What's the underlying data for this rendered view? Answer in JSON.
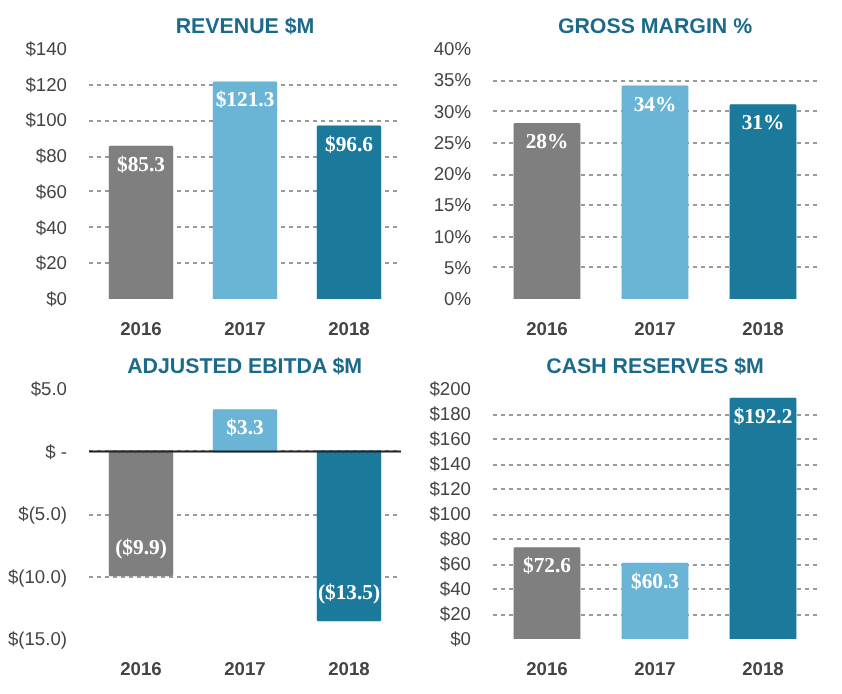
{
  "chart_data": [
    {
      "type": "bar",
      "title": "REVENUE $M",
      "categories": [
        "2016",
        "2017",
        "2018"
      ],
      "values": [
        85.3,
        121.3,
        96.6
      ],
      "colors": [
        "#7f7f7f",
        "#6ab4d6",
        "#1b7a9c"
      ],
      "value_labels": [
        "$85.3",
        "$121.3",
        "$96.6"
      ],
      "ylim": [
        0,
        140
      ],
      "yticks": [
        {
          "value": 0,
          "label": "$0"
        },
        {
          "value": 20,
          "label": "$20"
        },
        {
          "value": 40,
          "label": "$40"
        },
        {
          "value": 60,
          "label": "$60"
        },
        {
          "value": 80,
          "label": "$80"
        },
        {
          "value": 100,
          "label": "$100"
        },
        {
          "value": 120,
          "label": "$120"
        },
        {
          "value": 140,
          "label": "$140"
        }
      ],
      "grid": "y"
    },
    {
      "type": "bar",
      "title": "GROSS MARGIN %",
      "categories": [
        "2016",
        "2017",
        "2018"
      ],
      "values": [
        28,
        34,
        31
      ],
      "colors": [
        "#7f7f7f",
        "#6ab4d6",
        "#1b7a9c"
      ],
      "value_labels": [
        "28%",
        "34%",
        "31%"
      ],
      "ylim": [
        0,
        40
      ],
      "yticks": [
        {
          "value": 0,
          "label": "0%"
        },
        {
          "value": 5,
          "label": "5%"
        },
        {
          "value": 10,
          "label": "10%"
        },
        {
          "value": 15,
          "label": "15%"
        },
        {
          "value": 20,
          "label": "20%"
        },
        {
          "value": 25,
          "label": "25%"
        },
        {
          "value": 30,
          "label": "30%"
        },
        {
          "value": 35,
          "label": "35%"
        },
        {
          "value": 40,
          "label": "40%"
        }
      ],
      "grid": "y"
    },
    {
      "type": "bar",
      "title": "ADJUSTED EBITDA $M",
      "categories": [
        "2016",
        "2017",
        "2018"
      ],
      "values": [
        -9.9,
        3.3,
        -13.5
      ],
      "colors": [
        "#7f7f7f",
        "#6ab4d6",
        "#1b7a9c"
      ],
      "value_labels": [
        "($9.9)",
        "$3.3",
        "($13.5)"
      ],
      "ylim": [
        -15,
        5
      ],
      "yticks": [
        {
          "value": -15,
          "label": "$(15.0)"
        },
        {
          "value": -10,
          "label": "$(10.0)"
        },
        {
          "value": -5,
          "label": "$(5.0)"
        },
        {
          "value": 0,
          "label": "$ -"
        },
        {
          "value": 5,
          "label": "$5.0"
        }
      ],
      "grid": "y"
    },
    {
      "type": "bar",
      "title": "CASH RESERVES $M",
      "categories": [
        "2016",
        "2017",
        "2018"
      ],
      "values": [
        72.6,
        60.3,
        192.2
      ],
      "colors": [
        "#7f7f7f",
        "#6ab4d6",
        "#1b7a9c"
      ],
      "value_labels": [
        "$72.6",
        "$60.3",
        "$192.2"
      ],
      "ylim": [
        0,
        200
      ],
      "yticks": [
        {
          "value": 0,
          "label": "$0"
        },
        {
          "value": 20,
          "label": "$20"
        },
        {
          "value": 40,
          "label": "$40"
        },
        {
          "value": 60,
          "label": "$60"
        },
        {
          "value": 80,
          "label": "$80"
        },
        {
          "value": 100,
          "label": "$100"
        },
        {
          "value": 120,
          "label": "$120"
        },
        {
          "value": 140,
          "label": "$140"
        },
        {
          "value": 160,
          "label": "$160"
        },
        {
          "value": 180,
          "label": "$180"
        },
        {
          "value": 200,
          "label": "$200"
        }
      ],
      "grid": "y"
    }
  ]
}
